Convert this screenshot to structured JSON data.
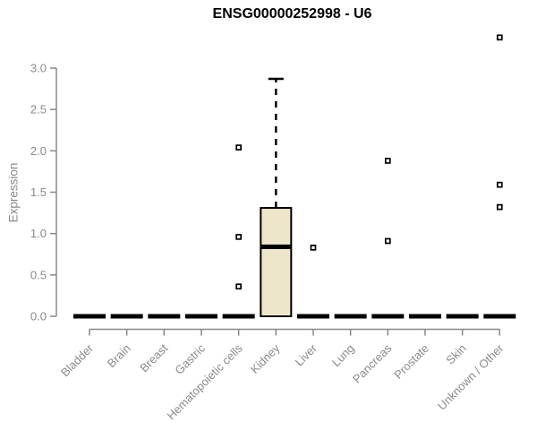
{
  "chart_data": {
    "type": "boxplot",
    "title": "ENSG00000252998 - U6",
    "ylabel": "Expression",
    "xlabel": "",
    "ylim": [
      0,
      3
    ],
    "ytick_labels": [
      "0.0",
      "0.5",
      "1.0",
      "1.5",
      "2.0",
      "2.5",
      "3.0"
    ],
    "ytick_values": [
      0,
      0.5,
      1,
      1.5,
      2,
      2.5,
      3
    ],
    "grid": false,
    "legend": "none",
    "colors": {
      "box_fill": "#EDE6CB",
      "box_stroke": "#000000",
      "axis": "#888888",
      "tick_text": "#8a8a8a",
      "title_text": "#000000",
      "outlier_fill": "#ffffff",
      "outlier_stroke": "#000000"
    },
    "categories": [
      "Bladder",
      "Brain",
      "Breast",
      "Gastric",
      "Hematopoietic cells",
      "Kidney",
      "Liver",
      "Lung",
      "Pancreas",
      "Prostate",
      "Skin",
      "Unknown / Other"
    ],
    "series": [
      {
        "name": "Bladder",
        "whisker_low": 0,
        "q1": 0,
        "median": 0,
        "q3": 0,
        "whisker_high": 0,
        "outliers": []
      },
      {
        "name": "Brain",
        "whisker_low": 0,
        "q1": 0,
        "median": 0,
        "q3": 0,
        "whisker_high": 0,
        "outliers": []
      },
      {
        "name": "Breast",
        "whisker_low": 0,
        "q1": 0,
        "median": 0,
        "q3": 0,
        "whisker_high": 0,
        "outliers": []
      },
      {
        "name": "Gastric",
        "whisker_low": 0,
        "q1": 0,
        "median": 0,
        "q3": 0,
        "whisker_high": 0,
        "outliers": []
      },
      {
        "name": "Hematopoietic cells",
        "whisker_low": 0,
        "q1": 0,
        "median": 0,
        "q3": 0,
        "whisker_high": 0,
        "outliers": [
          0.36,
          0.96,
          2.04
        ]
      },
      {
        "name": "Kidney",
        "whisker_low": 0,
        "q1": 0,
        "median": 0.84,
        "q3": 1.31,
        "whisker_high": 2.87,
        "outliers": []
      },
      {
        "name": "Liver",
        "whisker_low": 0,
        "q1": 0,
        "median": 0,
        "q3": 0,
        "whisker_high": 0,
        "outliers": [
          0.83
        ]
      },
      {
        "name": "Lung",
        "whisker_low": 0,
        "q1": 0,
        "median": 0,
        "q3": 0,
        "whisker_high": 0,
        "outliers": []
      },
      {
        "name": "Pancreas",
        "whisker_low": 0,
        "q1": 0,
        "median": 0,
        "q3": 0,
        "whisker_high": 0,
        "outliers": [
          0.91,
          1.88
        ]
      },
      {
        "name": "Prostate",
        "whisker_low": 0,
        "q1": 0,
        "median": 0,
        "q3": 0,
        "whisker_high": 0,
        "outliers": []
      },
      {
        "name": "Skin",
        "whisker_low": 0,
        "q1": 0,
        "median": 0,
        "q3": 0,
        "whisker_high": 0,
        "outliers": []
      },
      {
        "name": "Unknown / Other",
        "whisker_low": 0,
        "q1": 0,
        "median": 0,
        "q3": 0,
        "whisker_high": 0,
        "outliers": [
          1.32,
          1.59,
          3.37
        ]
      }
    ]
  }
}
